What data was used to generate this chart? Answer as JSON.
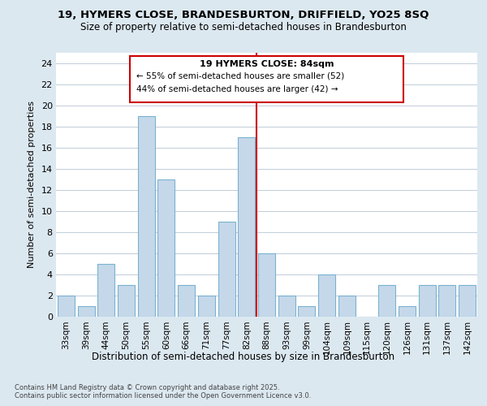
{
  "title1": "19, HYMERS CLOSE, BRANDESBURTON, DRIFFIELD, YO25 8SQ",
  "title2": "Size of property relative to semi-detached houses in Brandesburton",
  "xlabel": "Distribution of semi-detached houses by size in Brandesburton",
  "ylabel": "Number of semi-detached properties",
  "footnote": "Contains HM Land Registry data © Crown copyright and database right 2025.\nContains public sector information licensed under the Open Government Licence v3.0.",
  "categories": [
    "33sqm",
    "39sqm",
    "44sqm",
    "50sqm",
    "55sqm",
    "60sqm",
    "66sqm",
    "71sqm",
    "77sqm",
    "82sqm",
    "88sqm",
    "93sqm",
    "99sqm",
    "104sqm",
    "109sqm",
    "115sqm",
    "120sqm",
    "126sqm",
    "131sqm",
    "137sqm",
    "142sqm"
  ],
  "values": [
    2,
    1,
    5,
    3,
    19,
    13,
    3,
    2,
    9,
    17,
    6,
    2,
    1,
    4,
    2,
    0,
    3,
    1,
    3,
    3,
    3
  ],
  "bar_color": "#c5d8ea",
  "bar_edge_color": "#7ab3d0",
  "property_label": "19 HYMERS CLOSE: 84sqm",
  "annotation_line1": "← 55% of semi-detached houses are smaller (52)",
  "annotation_line2": "44% of semi-detached houses are larger (42) →",
  "vline_color": "#cc0000",
  "annotation_box_edgecolor": "#cc0000",
  "ylim": [
    0,
    25
  ],
  "yticks": [
    0,
    2,
    4,
    6,
    8,
    10,
    12,
    14,
    16,
    18,
    20,
    22,
    24
  ],
  "bg_color": "#dce8f0",
  "plot_bg_color": "#ffffff",
  "grid_color": "#c0cdd8",
  "vline_index": 9
}
